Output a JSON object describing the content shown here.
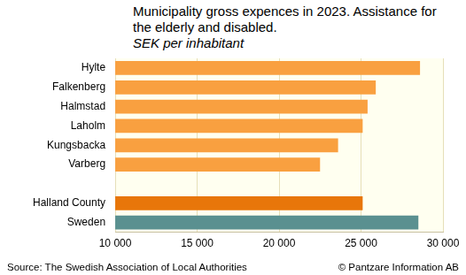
{
  "chart_data": {
    "type": "bar",
    "orientation": "horizontal",
    "title": "Municipality gross expences in 2023. Assistance for the elderly and disabled.",
    "subtitle": "SEK per inhabitant",
    "annotations": [
      "Source: The Swedish Association of Local Authorities",
      "© Pantzare Information AB"
    ],
    "categories": [
      "Hylte",
      "Falkenberg",
      "Halmstad",
      "Laholm",
      "Kungsbacka",
      "Varberg",
      null,
      "Halland County",
      "Sweden"
    ],
    "values": [
      28600,
      25900,
      25400,
      25100,
      23600,
      22500,
      null,
      25100,
      28500
    ],
    "colors": [
      "#f9a040",
      "#f9a040",
      "#f9a040",
      "#f9a040",
      "#f9a040",
      "#f9a040",
      null,
      "#e8760a",
      "#5a9090"
    ],
    "xlim": [
      10000,
      30000
    ],
    "xticks": [
      {
        "value": 10000,
        "label": "10 000"
      },
      {
        "value": 15000,
        "label": "15 000"
      },
      {
        "value": 20000,
        "label": "20 000"
      },
      {
        "value": 25000,
        "label": "25 000"
      },
      {
        "value": 30000,
        "label": "30 000"
      }
    ],
    "grid": true
  }
}
